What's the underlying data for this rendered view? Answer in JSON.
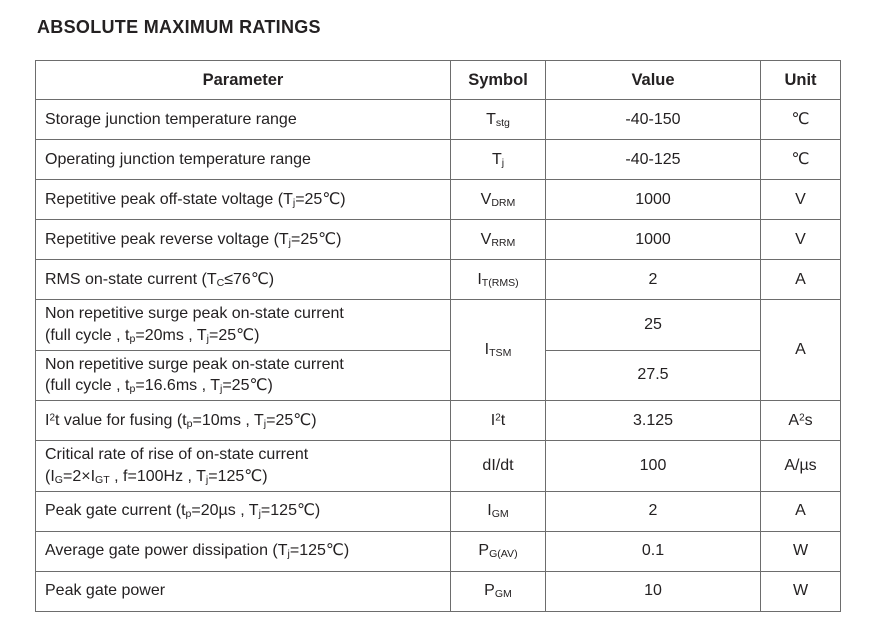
{
  "colors": {
    "background": "#ffffff",
    "text": "#242122",
    "table_border": "#6d6d6d"
  },
  "page": {
    "title": "ABSOLUTE MAXIMUM RATINGS"
  },
  "table": {
    "headers": [
      "Parameter",
      "Symbol",
      "Value",
      "Unit"
    ],
    "rows": [
      {
        "cells": [
          {
            "name": "parameter",
            "runs": [
              {
                "t": "Storage junction temperature range"
              }
            ]
          },
          {
            "name": "symbol",
            "runs": [
              {
                "t": "T"
              },
              {
                "t": "stg",
                "s": "sub"
              }
            ]
          },
          {
            "name": "value",
            "runs": [
              {
                "t": "-40-150"
              }
            ]
          },
          {
            "name": "unit",
            "runs": [
              {
                "t": "℃"
              }
            ]
          }
        ]
      },
      {
        "cells": [
          {
            "name": "parameter",
            "runs": [
              {
                "t": "Operating junction temperature range"
              }
            ]
          },
          {
            "name": "symbol",
            "runs": [
              {
                "t": "T"
              },
              {
                "t": "j",
                "s": "sub"
              }
            ]
          },
          {
            "name": "value",
            "runs": [
              {
                "t": "-40-125"
              }
            ]
          },
          {
            "name": "unit",
            "runs": [
              {
                "t": "℃"
              }
            ]
          }
        ]
      },
      {
        "cells": [
          {
            "name": "parameter",
            "runs": [
              {
                "t": "Repetitive peak off-state voltage (T"
              },
              {
                "t": "j",
                "s": "sub"
              },
              {
                "t": "=25℃)"
              }
            ]
          },
          {
            "name": "symbol",
            "runs": [
              {
                "t": "V"
              },
              {
                "t": "DRM",
                "s": "sub"
              }
            ]
          },
          {
            "name": "value",
            "runs": [
              {
                "t": "1000"
              }
            ]
          },
          {
            "name": "unit",
            "runs": [
              {
                "t": "V"
              }
            ]
          }
        ]
      },
      {
        "cells": [
          {
            "name": "parameter",
            "runs": [
              {
                "t": "Repetitive peak reverse voltage (T"
              },
              {
                "t": "j",
                "s": "sub"
              },
              {
                "t": "=25℃)"
              }
            ]
          },
          {
            "name": "symbol",
            "runs": [
              {
                "t": "V"
              },
              {
                "t": "RRM",
                "s": "sub"
              }
            ]
          },
          {
            "name": "value",
            "runs": [
              {
                "t": "1000"
              }
            ]
          },
          {
            "name": "unit",
            "runs": [
              {
                "t": "V"
              }
            ]
          }
        ]
      },
      {
        "cells": [
          {
            "name": "parameter",
            "runs": [
              {
                "t": "RMS on-state current (T"
              },
              {
                "t": "C",
                "s": "sub"
              },
              {
                "t": "≤76℃)"
              }
            ]
          },
          {
            "name": "symbol",
            "runs": [
              {
                "t": "I"
              },
              {
                "t": "T(RMS)",
                "s": "sub"
              }
            ]
          },
          {
            "name": "value",
            "runs": [
              {
                "t": "2"
              }
            ]
          },
          {
            "name": "unit",
            "runs": [
              {
                "t": "A"
              }
            ]
          }
        ]
      },
      {
        "cells": [
          {
            "name": "parameter",
            "runs": [
              {
                "t": "Non repetitive surge peak on-state current"
              },
              {
                "br": true
              },
              {
                "t": "(full cycle , t"
              },
              {
                "t": "p",
                "s": "sub"
              },
              {
                "t": "=20ms , T"
              },
              {
                "t": "j",
                "s": "sub"
              },
              {
                "t": "=25℃)"
              }
            ]
          },
          {
            "name": "symbol",
            "rowspan": 2,
            "runs": [
              {
                "t": "I"
              },
              {
                "t": "TSM",
                "s": "sub"
              }
            ]
          },
          {
            "name": "value",
            "runs": [
              {
                "t": "25"
              }
            ]
          },
          {
            "name": "unit",
            "rowspan": 2,
            "runs": [
              {
                "t": "A"
              }
            ]
          }
        ]
      },
      {
        "cells": [
          {
            "name": "parameter",
            "runs": [
              {
                "t": "Non repetitive surge peak on-state current"
              },
              {
                "br": true
              },
              {
                "t": "(full cycle , t"
              },
              {
                "t": "p",
                "s": "sub"
              },
              {
                "t": "=16.6ms , T"
              },
              {
                "t": "j",
                "s": "sub"
              },
              {
                "t": "=25℃)"
              }
            ]
          },
          {
            "name": "value",
            "runs": [
              {
                "t": "27.5"
              }
            ]
          }
        ]
      },
      {
        "cells": [
          {
            "name": "parameter",
            "runs": [
              {
                "t": "I"
              },
              {
                "t": "2",
                "s": "sup"
              },
              {
                "t": "t value for fusing (t"
              },
              {
                "t": "p",
                "s": "sub"
              },
              {
                "t": "=10ms , T"
              },
              {
                "t": "j",
                "s": "sub"
              },
              {
                "t": "=25℃)"
              }
            ]
          },
          {
            "name": "symbol",
            "runs": [
              {
                "t": "I"
              },
              {
                "t": "2",
                "s": "sup"
              },
              {
                "t": "t"
              }
            ]
          },
          {
            "name": "value",
            "runs": [
              {
                "t": "3.125"
              }
            ]
          },
          {
            "name": "unit",
            "runs": [
              {
                "t": "A"
              },
              {
                "t": "2",
                "s": "sup"
              },
              {
                "t": "s"
              }
            ]
          }
        ]
      },
      {
        "cells": [
          {
            "name": "parameter",
            "runs": [
              {
                "t": "Critical rate of rise of on-state current"
              },
              {
                "br": true
              },
              {
                "t": "(I"
              },
              {
                "t": "G",
                "s": "sub"
              },
              {
                "t": "=2×I"
              },
              {
                "t": "GT",
                "s": "sub"
              },
              {
                "t": " , f=100Hz , T"
              },
              {
                "t": "j",
                "s": "sub"
              },
              {
                "t": "=125℃)"
              }
            ]
          },
          {
            "name": "symbol",
            "runs": [
              {
                "t": "dI/dt"
              }
            ]
          },
          {
            "name": "value",
            "runs": [
              {
                "t": "100"
              }
            ]
          },
          {
            "name": "unit",
            "runs": [
              {
                "t": "A/µs"
              }
            ]
          }
        ]
      },
      {
        "cells": [
          {
            "name": "parameter",
            "runs": [
              {
                "t": "Peak gate current (t"
              },
              {
                "t": "p",
                "s": "sub"
              },
              {
                "t": "=20µs , T"
              },
              {
                "t": "j",
                "s": "sub"
              },
              {
                "t": "=125℃)"
              }
            ]
          },
          {
            "name": "symbol",
            "runs": [
              {
                "t": "I"
              },
              {
                "t": "GM",
                "s": "sub"
              }
            ]
          },
          {
            "name": "value",
            "runs": [
              {
                "t": "2"
              }
            ]
          },
          {
            "name": "unit",
            "runs": [
              {
                "t": "A"
              }
            ]
          }
        ]
      },
      {
        "cells": [
          {
            "name": "parameter",
            "runs": [
              {
                "t": "Average gate power dissipation (T"
              },
              {
                "t": "j",
                "s": "sub"
              },
              {
                "t": "=125℃)"
              }
            ]
          },
          {
            "name": "symbol",
            "runs": [
              {
                "t": "P"
              },
              {
                "t": "G(AV)",
                "s": "sub"
              }
            ]
          },
          {
            "name": "value",
            "runs": [
              {
                "t": "0.1"
              }
            ]
          },
          {
            "name": "unit",
            "runs": [
              {
                "t": "W"
              }
            ]
          }
        ]
      },
      {
        "cells": [
          {
            "name": "parameter",
            "runs": [
              {
                "t": "Peak gate power"
              }
            ]
          },
          {
            "name": "symbol",
            "runs": [
              {
                "t": "P"
              },
              {
                "t": "GM",
                "s": "sub"
              }
            ]
          },
          {
            "name": "value",
            "runs": [
              {
                "t": "10"
              }
            ]
          },
          {
            "name": "unit",
            "runs": [
              {
                "t": "W"
              }
            ]
          }
        ]
      }
    ]
  }
}
